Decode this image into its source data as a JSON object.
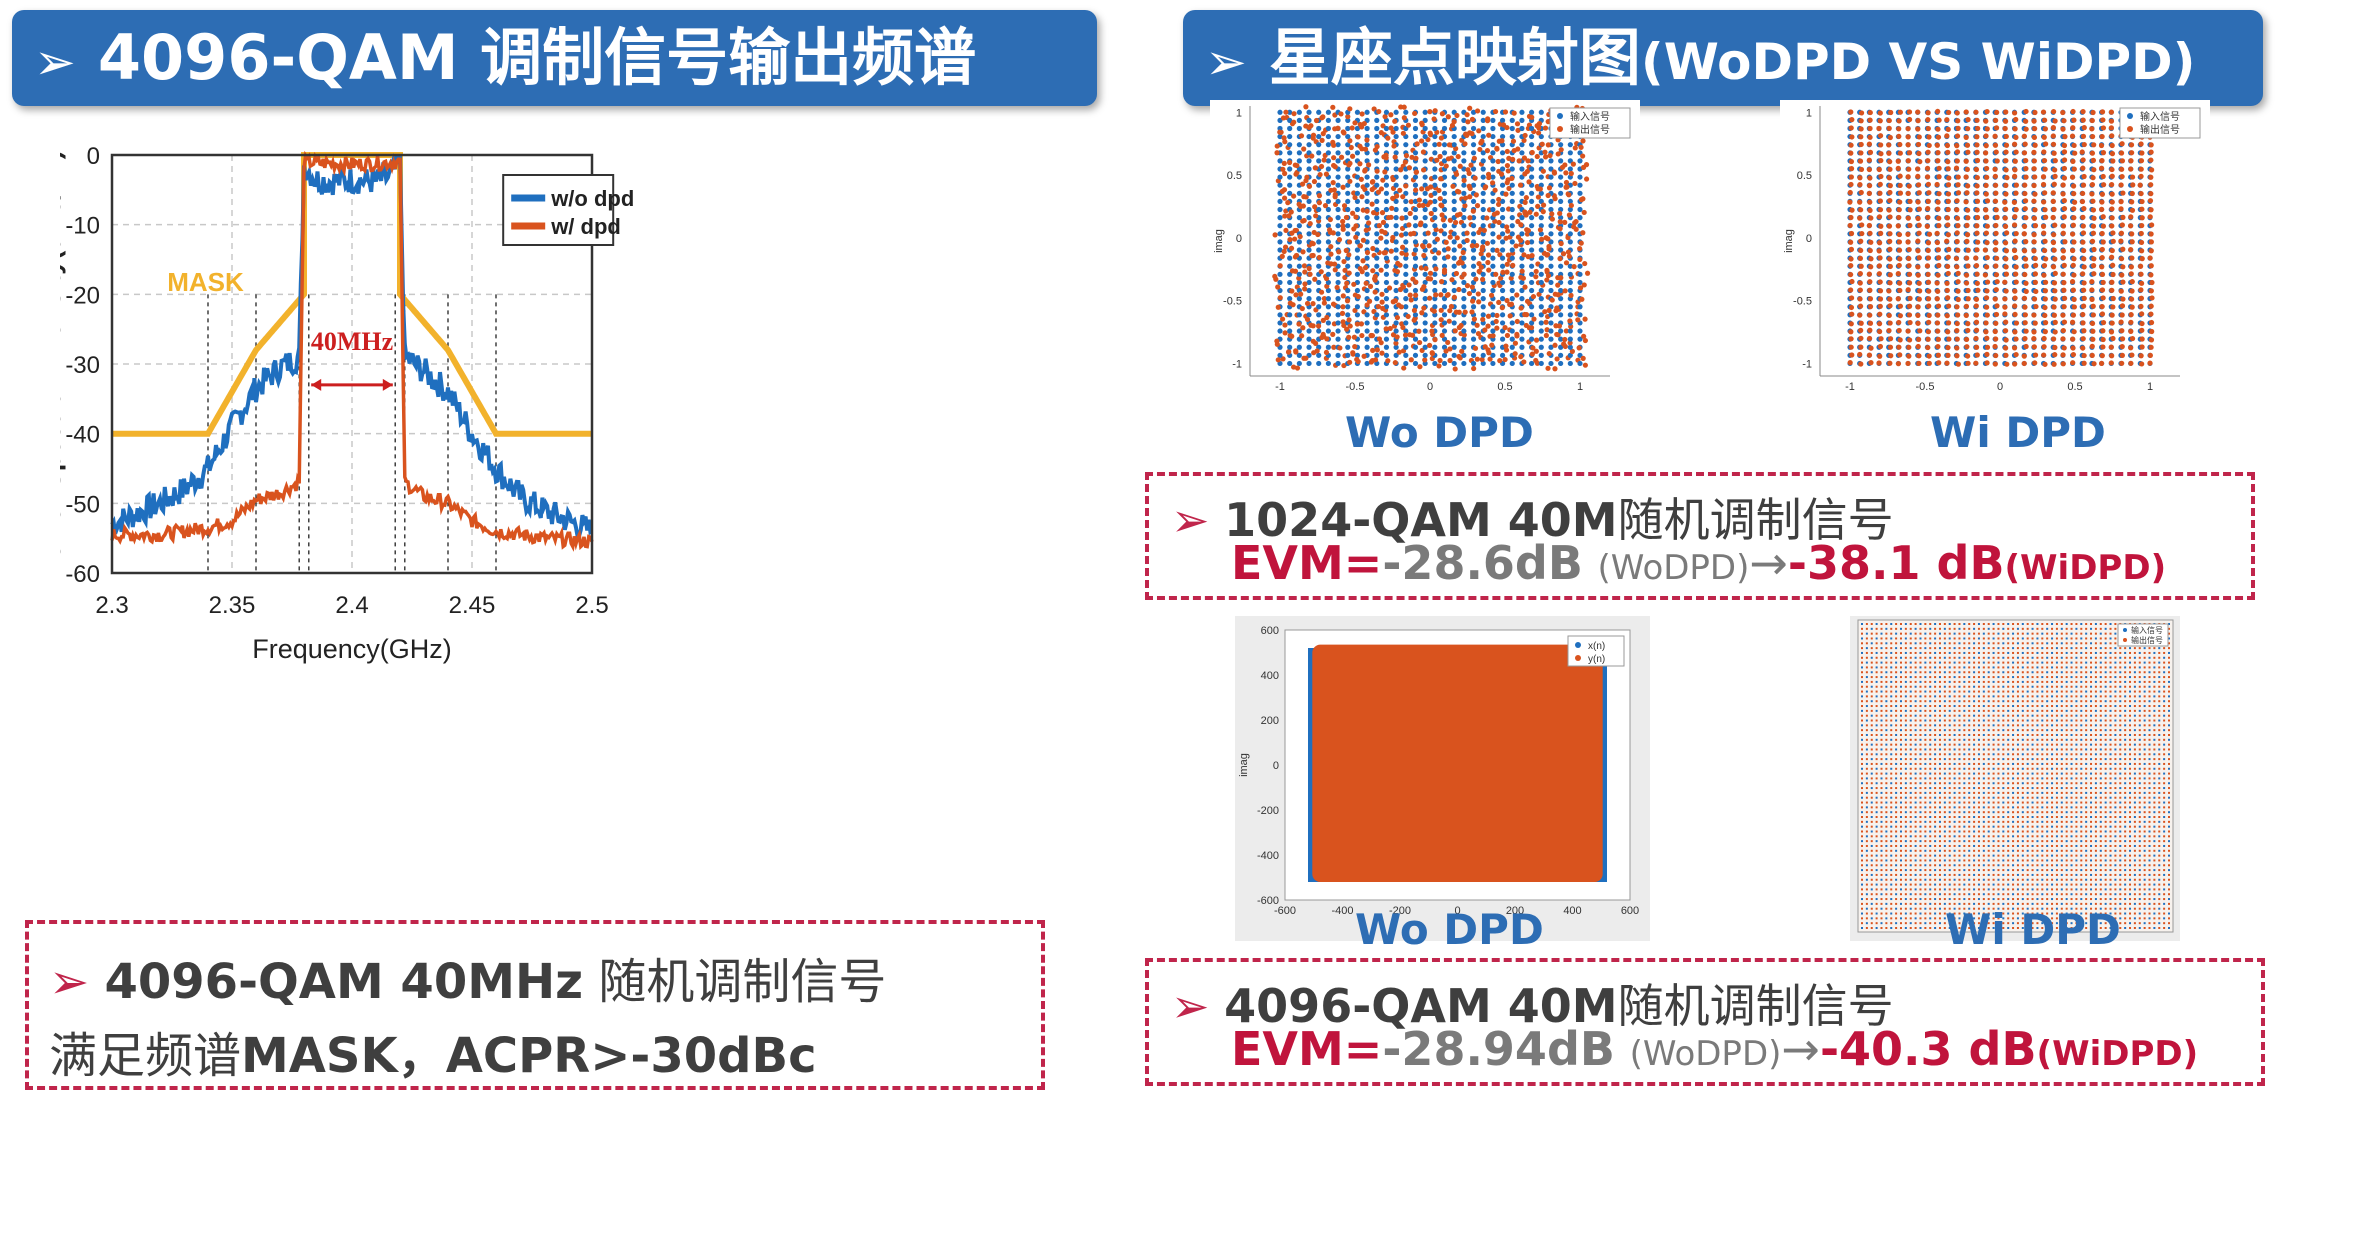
{
  "left_banner": {
    "arrow": "➢",
    "title": "4096-QAM 调制信号输出频谱"
  },
  "right_banner": {
    "arrow": "➢",
    "title": "星座点映射图",
    "title_rest": "(WoDPD VS WiDPD)"
  },
  "chart_data": {
    "type": "line",
    "xlabel": "Frequency(GHz)",
    "ylabel": "Power Spectrum Density(dBc/Hz)",
    "xlim": [
      2.3,
      2.5
    ],
    "ylim": [
      -60,
      0
    ],
    "x_ticks": [
      "2.3",
      "2.35",
      "2.4",
      "2.45",
      "2.5"
    ],
    "y_ticks": [
      "0",
      "-10",
      "-20",
      "-30",
      "-40",
      "-50",
      "-60"
    ],
    "grid": true,
    "legend_position": "top-right",
    "series": [
      {
        "name": "w/o dpd",
        "color": "#1f6fbf",
        "x": [
          2.3,
          2.31,
          2.32,
          2.33,
          2.34,
          2.35,
          2.36,
          2.37,
          2.378,
          2.38,
          2.385,
          2.39,
          2.4,
          2.41,
          2.415,
          2.42,
          2.422,
          2.43,
          2.44,
          2.45,
          2.46,
          2.47,
          2.48,
          2.49,
          2.5
        ],
        "y": [
          -53,
          -51.5,
          -50,
          -48,
          -45,
          -39,
          -33.5,
          -30.5,
          -29,
          -1.5,
          -3.5,
          -3.8,
          -3.6,
          -3.8,
          -3.2,
          -1.5,
          -29,
          -31,
          -34,
          -40,
          -45,
          -49,
          -51,
          -52.5,
          -54
        ]
      },
      {
        "name": "w/ dpd",
        "color": "#d9531e",
        "x": [
          2.3,
          2.32,
          2.34,
          2.35,
          2.36,
          2.37,
          2.378,
          2.38,
          2.39,
          2.4,
          2.41,
          2.42,
          2.422,
          2.43,
          2.44,
          2.45,
          2.46,
          2.48,
          2.5
        ],
        "y": [
          -54.5,
          -54.5,
          -53.5,
          -52.5,
          -49.5,
          -48.5,
          -47,
          -1,
          -1.2,
          -1.3,
          -1.2,
          -1,
          -47,
          -49,
          -50,
          -52.5,
          -54,
          -55,
          -55.5
        ]
      },
      {
        "name": "MASK",
        "color": "#f2b22c",
        "x": [
          2.3,
          2.34,
          2.36,
          2.38,
          2.38,
          2.42,
          2.42,
          2.44,
          2.46,
          2.5
        ],
        "y": [
          -40,
          -40,
          -28,
          -20,
          0,
          0,
          -20,
          -28,
          -40,
          -40
        ]
      }
    ],
    "annotations": [
      {
        "text": "MASK",
        "color": "#f2b22c"
      },
      {
        "text": "40MHz",
        "color": "#cc1f1f"
      }
    ]
  },
  "left_box": {
    "arrow": "➢",
    "line1": "4096-QAM 40MHz",
    "line1_rest": "随机调制信号",
    "line2_a": "满足频谱",
    "line2_b": "MASK，ACPR>-30dBc"
  },
  "constellation_top": {
    "left_caption": "Wo DPD",
    "right_caption": "Wi DPD",
    "legend": [
      "输入信号",
      "输出信号"
    ],
    "ticks": [
      "1",
      "0.5",
      "0",
      "-0.5",
      "-1"
    ],
    "ylabel": "imag",
    "input_color": "#1f6fbf",
    "output_color": "#d9531e"
  },
  "box_1024": {
    "arrow": "➢",
    "line1_a": "1024-QAM 40M",
    "line1_b": "随机调制信号",
    "evm_label": "EVM=",
    "wo_value": "-28.6dB",
    "wo_sub": "(WoDPD)",
    "arrow2": "→",
    "wi_value": "-38.1 dB",
    "wi_sub": "(WiDPD)"
  },
  "constellation_bottom": {
    "left_caption": "Wo DPD",
    "right_caption": "Wi DPD",
    "legend": [
      "x(n)",
      "y(n)"
    ],
    "y_ticks": [
      "600",
      "400",
      "200",
      "0",
      "-200",
      "-400",
      "-600"
    ],
    "x_ticks": [
      "-600",
      "-400",
      "-200",
      "0",
      "200",
      "400",
      "600"
    ],
    "ylabel": "imag"
  },
  "box_4096": {
    "arrow": "➢",
    "line1_a": "4096-QAM 40M",
    "line1_b": "随机调制信号",
    "evm_label": "EVM=",
    "wo_value": "-28.94dB",
    "wo_sub": "(WoDPD)",
    "arrow2": "→",
    "wi_value": "-40.3 dB",
    "wi_sub": "(WiDPD)"
  }
}
